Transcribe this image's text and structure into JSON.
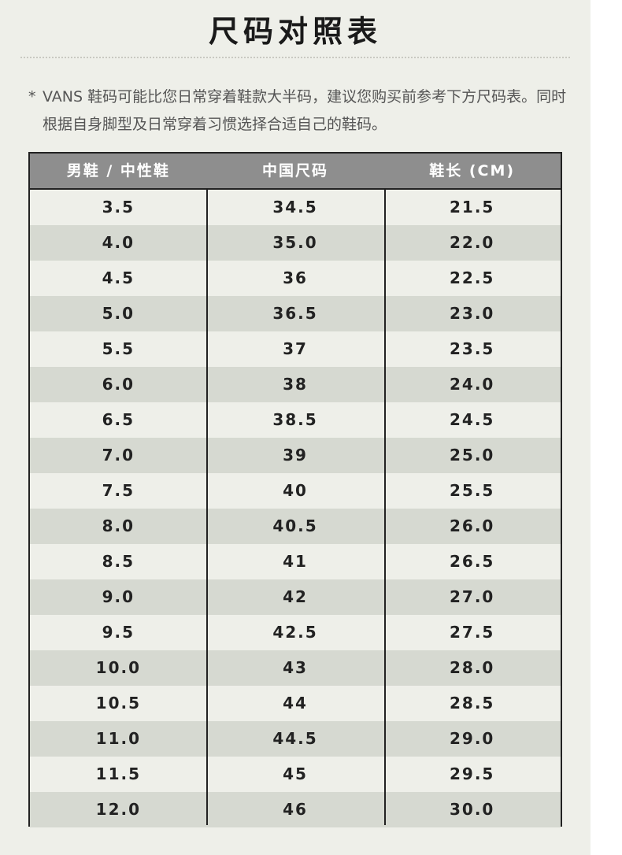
{
  "page": {
    "title": "尺码对照表",
    "note_star": "*",
    "note_text": "VANS 鞋码可能比您日常穿着鞋款大半码，建议您购买前参考下方尺码表。同时根据自身脚型及日常穿着习惯选择合适自己的鞋码。"
  },
  "table": {
    "headers": [
      "男鞋 / 中性鞋",
      "中国尺码",
      "鞋长 (CM)"
    ],
    "rows": [
      [
        "3.5",
        "34.5",
        "21.5"
      ],
      [
        "4.0",
        "35.0",
        "22.0"
      ],
      [
        "4.5",
        "36",
        "22.5"
      ],
      [
        "5.0",
        "36.5",
        "23.0"
      ],
      [
        "5.5",
        "37",
        "23.5"
      ],
      [
        "6.0",
        "38",
        "24.0"
      ],
      [
        "6.5",
        "38.5",
        "24.5"
      ],
      [
        "7.0",
        "39",
        "25.0"
      ],
      [
        "7.5",
        "40",
        "25.5"
      ],
      [
        "8.0",
        "40.5",
        "26.0"
      ],
      [
        "8.5",
        "41",
        "26.5"
      ],
      [
        "9.0",
        "42",
        "27.0"
      ],
      [
        "9.5",
        "42.5",
        "27.5"
      ],
      [
        "10.0",
        "43",
        "28.0"
      ],
      [
        "10.5",
        "44",
        "28.5"
      ],
      [
        "11.0",
        "44.5",
        "29.0"
      ],
      [
        "11.5",
        "45",
        "29.5"
      ],
      [
        "12.0",
        "46",
        "30.0"
      ]
    ]
  },
  "colors": {
    "background": "#eeefe9",
    "header_bg": "#8e8e8e",
    "alt_row_bg": "#d6d9d1",
    "border": "#222222"
  }
}
